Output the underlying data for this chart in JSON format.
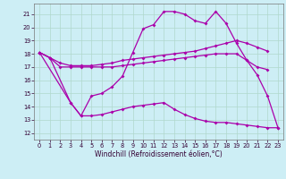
{
  "xlabel": "Windchill (Refroidissement éolien,°C)",
  "background_color": "#cdeef5",
  "line_color": "#aa00aa",
  "x_ticks": [
    0,
    1,
    2,
    3,
    4,
    5,
    6,
    7,
    8,
    9,
    10,
    11,
    12,
    13,
    14,
    15,
    16,
    17,
    18,
    19,
    20,
    21,
    22,
    23
  ],
  "y_ticks": [
    12,
    13,
    14,
    15,
    16,
    17,
    18,
    19,
    20,
    21
  ],
  "ylim": [
    11.5,
    21.8
  ],
  "xlim": [
    -0.5,
    23.5
  ],
  "line1_x": [
    0,
    1,
    3,
    4,
    5,
    6,
    7,
    8,
    9,
    10,
    11,
    12,
    13,
    14,
    15,
    16,
    17,
    18,
    19,
    20,
    21,
    22,
    23
  ],
  "line1_y": [
    18.1,
    17.7,
    14.3,
    13.3,
    14.8,
    15.0,
    15.5,
    16.3,
    18.1,
    19.9,
    20.2,
    21.2,
    21.2,
    21.0,
    20.5,
    20.3,
    21.2,
    20.3,
    18.8,
    17.5,
    16.4,
    14.8,
    12.4
  ],
  "line2_x": [
    0,
    1,
    2,
    3,
    4,
    5,
    6,
    7,
    8,
    9,
    10,
    11,
    12,
    13,
    14,
    15,
    16,
    17,
    18,
    19,
    20,
    21,
    22
  ],
  "line2_y": [
    18.1,
    17.7,
    17.3,
    17.1,
    17.1,
    17.1,
    17.2,
    17.3,
    17.5,
    17.6,
    17.7,
    17.8,
    17.9,
    18.0,
    18.1,
    18.2,
    18.4,
    18.6,
    18.8,
    19.0,
    18.8,
    18.5,
    18.2
  ],
  "line3_x": [
    0,
    1,
    2,
    3,
    4,
    5,
    6,
    7,
    8,
    9,
    10,
    11,
    12,
    13,
    14,
    15,
    16,
    17,
    18,
    19,
    20,
    21,
    22
  ],
  "line3_y": [
    18.1,
    17.7,
    17.0,
    17.0,
    17.0,
    17.0,
    17.0,
    17.0,
    17.1,
    17.2,
    17.3,
    17.4,
    17.5,
    17.6,
    17.7,
    17.8,
    17.9,
    18.0,
    18.0,
    18.0,
    17.5,
    17.0,
    16.8
  ],
  "line4_x": [
    0,
    3,
    4,
    5,
    6,
    7,
    8,
    9,
    10,
    11,
    12,
    13,
    14,
    15,
    16,
    17,
    18,
    19,
    20,
    21,
    22,
    23
  ],
  "line4_y": [
    18.1,
    14.3,
    13.3,
    13.3,
    13.4,
    13.6,
    13.8,
    14.0,
    14.1,
    14.2,
    14.3,
    13.8,
    13.4,
    13.1,
    12.9,
    12.8,
    12.8,
    12.7,
    12.6,
    12.5,
    12.4,
    12.4
  ],
  "grid_color": "#b0d8cc",
  "spine_color": "#777777",
  "tick_color": "#330033",
  "xlabel_fontsize": 5.5,
  "tick_fontsize": 4.8,
  "marker_size": 2.0,
  "linewidth": 0.9
}
